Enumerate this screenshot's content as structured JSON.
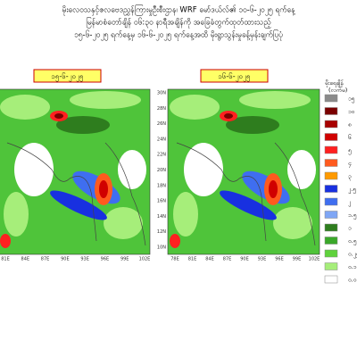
{
  "header": {
    "lines": [
      "မိုးလေဝသနှင့်ဇလဗေဒညွှန်ကြားမှုဦးစီးဌာန၊ WRF မော်ဒယ်လ်၏ ၁၀-၆-၂၀၂၅ ရက်နေ့",
      "မြန်မာစံတော်ချိန် ၀၆:၃၀ နာရီအချိန်ကို အခြေခံတွက်ထုတ်ထားသည့်",
      "၁၅-၆-၂၀၂၅ ရက်နေ့မှ ၁၆-၆-၂၀၂၅ ရက်နေ့အထိ မိုးရွာသွန်းမှုခန့်မှန်းချက်ပြပုံ"
    ]
  },
  "panels": [
    {
      "label": "၁၅-၆-၂၀၂၅",
      "xlabels": [
        "81E",
        "84E",
        "87E",
        "90E",
        "93E",
        "96E",
        "99E",
        "102E"
      ],
      "ylabels": []
    },
    {
      "label": "၁၆-၆-၂၀၂၅",
      "xlabels": [
        "78E",
        "81E",
        "84E",
        "87E",
        "90E",
        "93E",
        "96E",
        "99E",
        "102E"
      ],
      "ylabels": [
        "30N",
        "28N",
        "26N",
        "24N",
        "22N",
        "20N",
        "18N",
        "16N",
        "14N",
        "12N",
        "10N"
      ]
    }
  ],
  "legend": {
    "title": "မိုးရေချိန်",
    "unit": "(လက်မ)",
    "items": [
      {
        "label": "၁၅",
        "color": "#8a8a8a"
      },
      {
        "label": "၁၀",
        "color": "#7a0000"
      },
      {
        "label": "၈",
        "color": "#a80000"
      },
      {
        "label": "၆",
        "color": "#d00000"
      },
      {
        "label": "၅",
        "color": "#ff2020"
      },
      {
        "label": "၄",
        "color": "#ff5a1e"
      },
      {
        "label": "၃",
        "color": "#ff9a00"
      },
      {
        "label": "၂.၅",
        "color": "#1830e0"
      },
      {
        "label": "၂",
        "color": "#3f6ef0"
      },
      {
        "label": "၁.၅",
        "color": "#7fa6f5"
      },
      {
        "label": "၁",
        "color": "#2e7d1e"
      },
      {
        "label": "၀.၅",
        "color": "#3aa82a"
      },
      {
        "label": "၀.၂၅",
        "color": "#5fd23c"
      },
      {
        "label": "၀.၁",
        "color": "#a6ee7a"
      },
      {
        "label": "၀.၀၁",
        "color": "#ffffff"
      }
    ]
  }
}
